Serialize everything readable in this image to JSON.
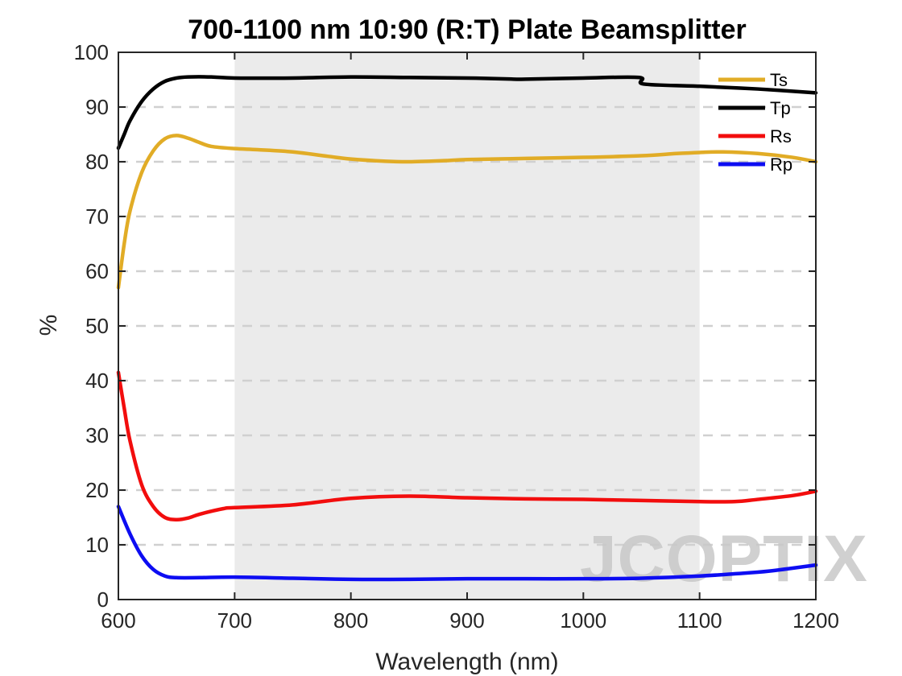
{
  "chart_data": {
    "type": "line",
    "title": "700-1100 nm 10:90 (R:T) Plate Beamsplitter",
    "xlabel": "Wavelength (nm)",
    "ylabel": "%",
    "xlim": [
      600,
      1200
    ],
    "ylim": [
      0,
      100
    ],
    "xticks": [
      "600",
      "700",
      "800",
      "900",
      "1000",
      "1100",
      "1200"
    ],
    "yticks": [
      "0",
      "10",
      "20",
      "30",
      "40",
      "50",
      "60",
      "70",
      "80",
      "90",
      "100"
    ],
    "grid": "horizontal dashed",
    "legend_position": "top-right",
    "highlight_band": [
      700,
      1100
    ],
    "watermark": "JCOPTIX",
    "series": [
      {
        "name": "Ts",
        "color": "#e1ac26",
        "points": [
          [
            600,
            57
          ],
          [
            605,
            65
          ],
          [
            610,
            71
          ],
          [
            620,
            78
          ],
          [
            630,
            82
          ],
          [
            640,
            84.2
          ],
          [
            650,
            84.8
          ],
          [
            660,
            84.3
          ],
          [
            670,
            83.5
          ],
          [
            680,
            82.8
          ],
          [
            700,
            82.4
          ],
          [
            720,
            82.2
          ],
          [
            750,
            81.8
          ],
          [
            780,
            81
          ],
          [
            800,
            80.5
          ],
          [
            830,
            80.1
          ],
          [
            850,
            80
          ],
          [
            880,
            80.2
          ],
          [
            900,
            80.4
          ],
          [
            950,
            80.6
          ],
          [
            1000,
            80.8
          ],
          [
            1050,
            81.1
          ],
          [
            1080,
            81.5
          ],
          [
            1100,
            81.7
          ],
          [
            1120,
            81.8
          ],
          [
            1150,
            81.5
          ],
          [
            1180,
            80.8
          ],
          [
            1200,
            80
          ]
        ]
      },
      {
        "name": "Tp",
        "color": "#000000",
        "points": [
          [
            600,
            82.5
          ],
          [
            605,
            85
          ],
          [
            610,
            87.5
          ],
          [
            620,
            91
          ],
          [
            630,
            93.3
          ],
          [
            640,
            94.7
          ],
          [
            650,
            95.3
          ],
          [
            660,
            95.5
          ],
          [
            680,
            95.5
          ],
          [
            700,
            95.3
          ],
          [
            750,
            95.3
          ],
          [
            800,
            95.5
          ],
          [
            850,
            95.4
          ],
          [
            900,
            95.3
          ],
          [
            940,
            95.1
          ],
          [
            950,
            95.1
          ],
          [
            1000,
            95.3
          ],
          [
            1048,
            95.4
          ],
          [
            1052,
            94.2
          ],
          [
            1100,
            93.8
          ],
          [
            1150,
            93.3
          ],
          [
            1200,
            92.6
          ]
        ]
      },
      {
        "name": "Rs",
        "color": "#f20d0d",
        "points": [
          [
            600,
            41.5
          ],
          [
            605,
            35
          ],
          [
            610,
            29
          ],
          [
            620,
            21
          ],
          [
            630,
            17
          ],
          [
            640,
            15
          ],
          [
            650,
            14.6
          ],
          [
            660,
            14.9
          ],
          [
            670,
            15.6
          ],
          [
            690,
            16.6
          ],
          [
            700,
            16.8
          ],
          [
            750,
            17.3
          ],
          [
            800,
            18.5
          ],
          [
            850,
            18.9
          ],
          [
            900,
            18.6
          ],
          [
            950,
            18.4
          ],
          [
            1000,
            18.3
          ],
          [
            1050,
            18.1
          ],
          [
            1100,
            17.9
          ],
          [
            1130,
            17.9
          ],
          [
            1150,
            18.3
          ],
          [
            1180,
            19
          ],
          [
            1200,
            19.8
          ]
        ]
      },
      {
        "name": "Rp",
        "color": "#0d0df2",
        "points": [
          [
            600,
            17
          ],
          [
            610,
            12
          ],
          [
            620,
            8
          ],
          [
            630,
            5.5
          ],
          [
            640,
            4.3
          ],
          [
            650,
            4
          ],
          [
            670,
            4
          ],
          [
            700,
            4.1
          ],
          [
            750,
            3.9
          ],
          [
            800,
            3.7
          ],
          [
            850,
            3.7
          ],
          [
            900,
            3.8
          ],
          [
            950,
            3.8
          ],
          [
            1000,
            3.8
          ],
          [
            1050,
            3.9
          ],
          [
            1100,
            4.3
          ],
          [
            1130,
            4.7
          ],
          [
            1160,
            5.2
          ],
          [
            1200,
            6.3
          ]
        ]
      }
    ]
  }
}
